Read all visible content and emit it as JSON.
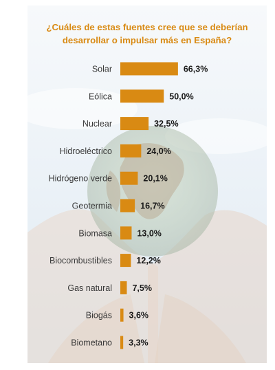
{
  "chart_data": {
    "type": "bar",
    "orientation": "horizontal",
    "title_lines": [
      "¿Cuáles de estas fuentes cree que se deberían",
      "desarrollar o impulsar más en España?"
    ],
    "categories": [
      "Solar",
      "Eólica",
      "Nuclear",
      "Hidroeléctrico",
      "Hidrógeno verde",
      "Geotermia",
      "Biomasa",
      "Biocombustibles",
      "Gas natural",
      "Biogás",
      "Biometano"
    ],
    "values": [
      66.3,
      50.0,
      32.5,
      24.0,
      20.1,
      16.7,
      13.0,
      12.2,
      7.5,
      3.6,
      3.3
    ],
    "value_labels": [
      "66,3%",
      "50,0%",
      "32,5%",
      "24,0%",
      "20,1%",
      "16,7%",
      "13,0%",
      "12,2%",
      "7,5%",
      "3,6%",
      "3,3%"
    ],
    "unit": "%",
    "xlim": [
      0,
      100
    ],
    "grid": false,
    "legend": "none",
    "colors": {
      "bar": "#d98a13",
      "title": "#d98a13",
      "category_text": "#3a3a3a",
      "value_text": "#1a1a1a"
    }
  }
}
